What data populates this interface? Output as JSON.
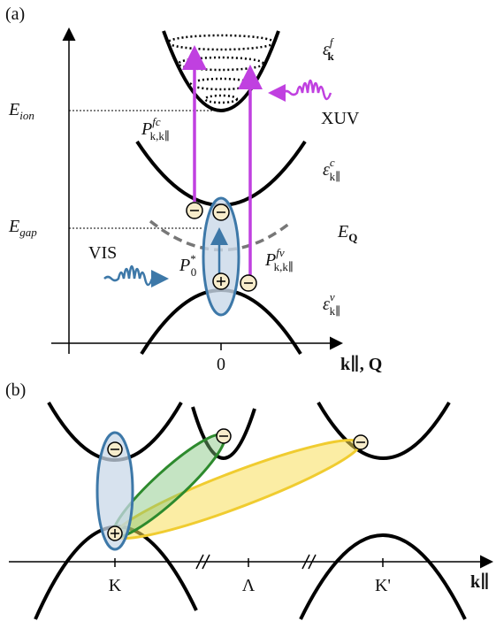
{
  "panel_a": {
    "label": "(a)",
    "eps_f": {
      "base": "ε",
      "sup": "f",
      "sub": "k"
    },
    "e_ion": {
      "base": "E",
      "sub": "ion"
    },
    "xuv": "XUV",
    "p_fc": {
      "base": "P",
      "sup": "fc",
      "sub": "k,k∥"
    },
    "eps_c": {
      "base": "ε",
      "sup": "c",
      "sub": "k∥"
    },
    "e_gap": {
      "base": "E",
      "sub": "gap"
    },
    "e_q": {
      "base": "E",
      "sub": "Q"
    },
    "vis": "VIS",
    "p0": {
      "base": "P",
      "sup": "*",
      "sub": "0"
    },
    "p_fv": {
      "base": "P",
      "sup": "fv",
      "sub": "k,k∥"
    },
    "eps_v": {
      "base": "ε",
      "sup": "v",
      "sub": "k∥"
    },
    "origin": "0",
    "x_axis": "k∥, Q"
  },
  "panel_b": {
    "label": "(b)",
    "points": [
      "K",
      "Λ",
      "K'"
    ],
    "x_axis": "k∥"
  }
}
